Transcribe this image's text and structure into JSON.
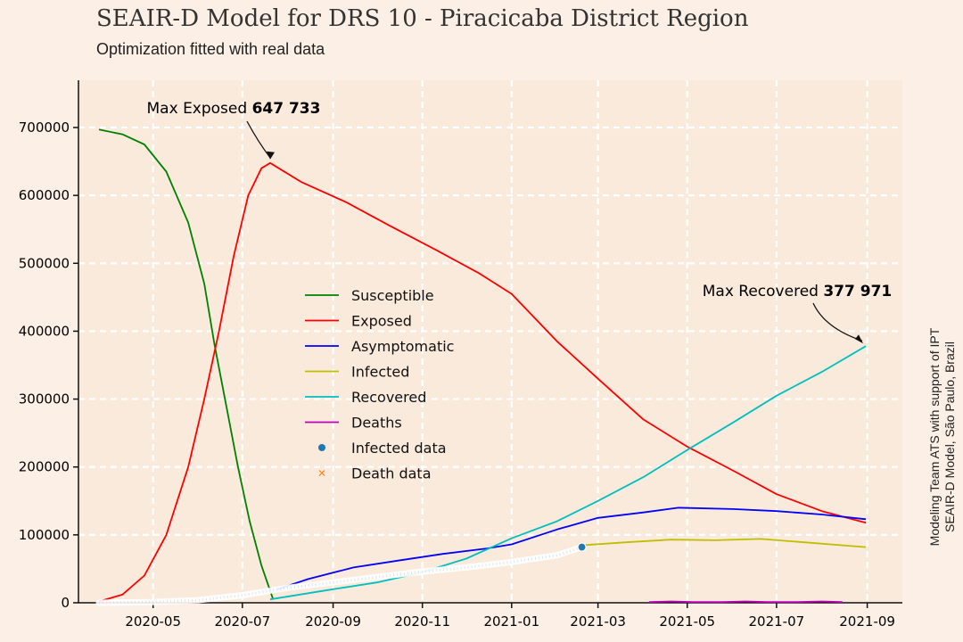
{
  "header": {
    "title": "SEAIR-D Model for DRS 10 - Piracicaba District Region",
    "subtitle": "Optimization fitted with real data"
  },
  "credit": [
    "Modeling Team ATS with support of IPT",
    "SEAIR-D Model, São Paulo, Brazil"
  ],
  "chart_data": {
    "type": "line",
    "title": "SEAIR-D Model for DRS 10 - Piracicaba District Region",
    "subtitle": "Optimization fitted with real data",
    "xlabel": "",
    "ylabel": "",
    "x_range": [
      "2020-03-11",
      "2021-09-25"
    ],
    "ylim": [
      0,
      700000
    ],
    "x_ticks": [
      "2020-05",
      "2020-07",
      "2020-09",
      "2020-11",
      "2021-01",
      "2021-03",
      "2021-05",
      "2021-07",
      "2021-09"
    ],
    "y_ticks": [
      0,
      100000,
      200000,
      300000,
      400000,
      500000,
      600000,
      700000
    ],
    "grid": true,
    "legend_position": "center-left",
    "series": [
      {
        "name": "Susceptible",
        "color": "#008000",
        "type": "line",
        "points": [
          [
            "2020-03-25",
            697000
          ],
          [
            "2020-04-10",
            690000
          ],
          [
            "2020-04-25",
            675000
          ],
          [
            "2020-05-10",
            635000
          ],
          [
            "2020-05-25",
            560000
          ],
          [
            "2020-06-05",
            470000
          ],
          [
            "2020-06-12",
            380000
          ],
          [
            "2020-06-20",
            290000
          ],
          [
            "2020-06-28",
            200000
          ],
          [
            "2020-07-06",
            120000
          ],
          [
            "2020-07-14",
            55000
          ],
          [
            "2020-07-22",
            5000
          ]
        ]
      },
      {
        "name": "Exposed",
        "color": "#ff0000",
        "type": "line",
        "points": [
          [
            "2020-03-25",
            2000
          ],
          [
            "2020-04-10",
            12000
          ],
          [
            "2020-04-25",
            40000
          ],
          [
            "2020-05-10",
            100000
          ],
          [
            "2020-05-25",
            200000
          ],
          [
            "2020-06-05",
            300000
          ],
          [
            "2020-06-15",
            400000
          ],
          [
            "2020-06-25",
            510000
          ],
          [
            "2020-07-05",
            600000
          ],
          [
            "2020-07-14",
            640000
          ],
          [
            "2020-07-20",
            647733
          ],
          [
            "2020-08-10",
            620000
          ],
          [
            "2020-09-10",
            590000
          ],
          [
            "2020-10-10",
            555000
          ],
          [
            "2020-11-10",
            520000
          ],
          [
            "2020-12-10",
            485000
          ],
          [
            "2021-01-01",
            455000
          ],
          [
            "2021-02-01",
            385000
          ],
          [
            "2021-03-01",
            330000
          ],
          [
            "2021-04-01",
            270000
          ],
          [
            "2021-05-01",
            230000
          ],
          [
            "2021-06-01",
            195000
          ],
          [
            "2021-07-01",
            160000
          ],
          [
            "2021-08-01",
            135000
          ],
          [
            "2021-08-31",
            118000
          ]
        ]
      },
      {
        "name": "Asymptomatic",
        "color": "#0000ff",
        "type": "line",
        "points": [
          [
            "2020-07-25",
            20000
          ],
          [
            "2020-08-15",
            35000
          ],
          [
            "2020-09-15",
            52000
          ],
          [
            "2020-10-15",
            62000
          ],
          [
            "2020-11-15",
            72000
          ],
          [
            "2020-12-15",
            80000
          ],
          [
            "2021-01-01",
            86000
          ],
          [
            "2021-02-01",
            108000
          ],
          [
            "2021-03-01",
            125000
          ],
          [
            "2021-04-01",
            133000
          ],
          [
            "2021-04-25",
            140000
          ],
          [
            "2021-06-01",
            138000
          ],
          [
            "2021-07-01",
            135000
          ],
          [
            "2021-08-01",
            130000
          ],
          [
            "2021-08-31",
            123000
          ]
        ]
      },
      {
        "name": "Infected",
        "color": "#bfbf00",
        "type": "line",
        "points": [
          [
            "2021-02-20",
            85000
          ],
          [
            "2021-03-20",
            89000
          ],
          [
            "2021-04-20",
            93000
          ],
          [
            "2021-05-20",
            92000
          ],
          [
            "2021-06-20",
            94000
          ],
          [
            "2021-07-20",
            89000
          ],
          [
            "2021-08-31",
            82000
          ]
        ]
      },
      {
        "name": "Recovered",
        "color": "#00bfbf",
        "type": "line",
        "points": [
          [
            "2020-07-20",
            5000
          ],
          [
            "2020-09-01",
            20000
          ],
          [
            "2020-10-01",
            30000
          ],
          [
            "2020-11-01",
            45000
          ],
          [
            "2020-12-01",
            65000
          ],
          [
            "2021-01-01",
            95000
          ],
          [
            "2021-02-01",
            120000
          ],
          [
            "2021-03-01",
            150000
          ],
          [
            "2021-04-01",
            185000
          ],
          [
            "2021-05-01",
            225000
          ],
          [
            "2021-06-01",
            265000
          ],
          [
            "2021-07-01",
            305000
          ],
          [
            "2021-08-01",
            340000
          ],
          [
            "2021-08-31",
            377971
          ]
        ]
      },
      {
        "name": "Deaths",
        "color": "#bf00bf",
        "type": "line",
        "points": [
          [
            "2021-04-05",
            1000
          ],
          [
            "2021-04-20",
            2000
          ],
          [
            "2021-05-05",
            1000
          ],
          [
            "2021-05-25",
            1000
          ],
          [
            "2021-06-10",
            2000
          ],
          [
            "2021-06-25",
            1000
          ],
          [
            "2021-07-15",
            1000
          ],
          [
            "2021-08-01",
            2000
          ],
          [
            "2021-08-15",
            1000
          ]
        ]
      },
      {
        "name": "Infected data",
        "color": "#1f77b4",
        "type": "scatter",
        "points": [
          [
            "2020-03-25",
            0
          ],
          [
            "2020-05-01",
            1000
          ],
          [
            "2020-06-01",
            4000
          ],
          [
            "2020-07-01",
            11000
          ],
          [
            "2020-08-01",
            22000
          ],
          [
            "2020-09-01",
            30000
          ],
          [
            "2020-10-01",
            38000
          ],
          [
            "2020-11-01",
            46000
          ],
          [
            "2020-12-01",
            52000
          ],
          [
            "2021-01-01",
            60000
          ],
          [
            "2021-02-01",
            70000
          ],
          [
            "2021-02-18",
            82000
          ]
        ]
      },
      {
        "name": "Death data",
        "color": "#ff7f0e",
        "type": "scatter",
        "points": []
      }
    ],
    "annotations": [
      {
        "label": "Max Exposed",
        "value": "647 733",
        "x": "2020-07-20",
        "y": 647733
      },
      {
        "label": "Max Recovered",
        "value": "377 971",
        "x": "2021-08-31",
        "y": 377971
      }
    ]
  }
}
